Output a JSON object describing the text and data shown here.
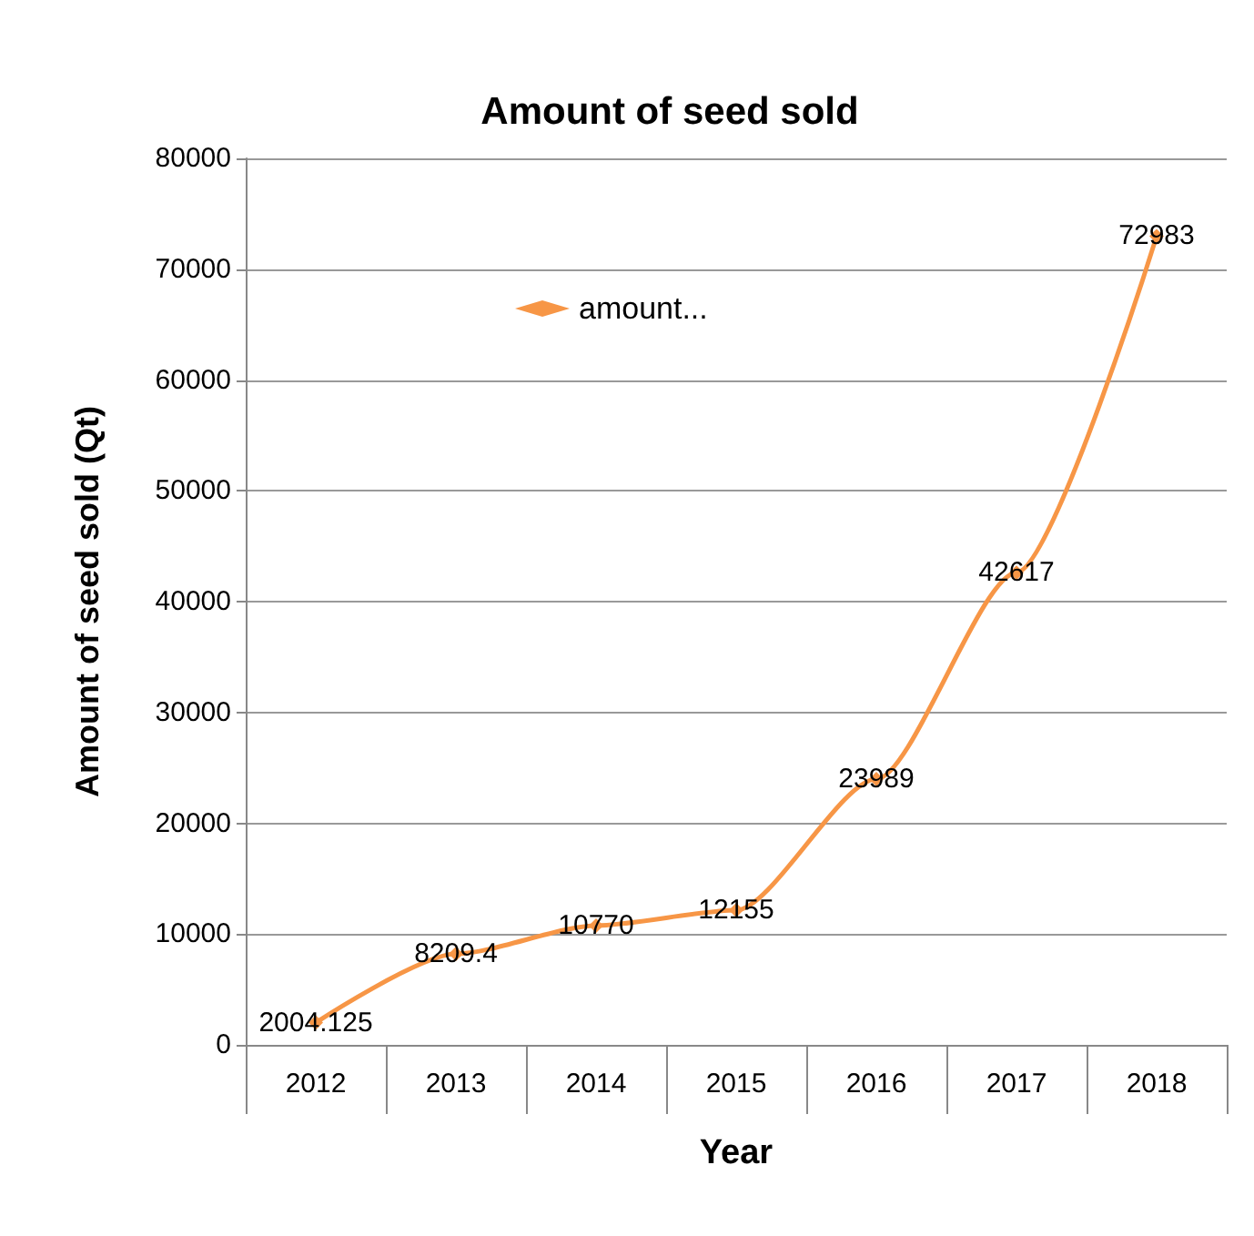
{
  "chart_data": {
    "type": "line",
    "title": "Amount of seed sold",
    "xlabel": "Year",
    "ylabel": "Amount of seed sold (Qt)",
    "categories": [
      "2012",
      "2013",
      "2014",
      "2015",
      "2016",
      "2017",
      "2018"
    ],
    "series": [
      {
        "name": "amount...",
        "color": "#f79646",
        "values": [
          2004.125,
          8209.4,
          10770,
          12155,
          23989,
          42617,
          72983
        ]
      }
    ],
    "ylim": [
      0,
      80000
    ],
    "yticks": [
      0,
      10000,
      20000,
      30000,
      40000,
      50000,
      60000,
      70000,
      80000
    ],
    "grid": "y",
    "legend": "top left",
    "marker": "diamond",
    "data_labels": true
  }
}
